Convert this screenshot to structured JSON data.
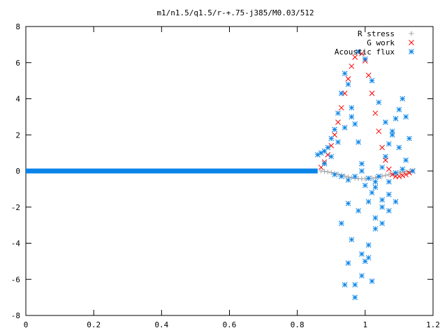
{
  "chart_data": {
    "type": "scatter",
    "title": "m1/n1.5/q1.5/r-+.75-j385/M0.03/512",
    "xlabel": "",
    "ylabel": "",
    "xlim": [
      0,
      1.2
    ],
    "ylim": [
      -8,
      8
    ],
    "xticks": [
      "0",
      "0.2",
      "0.4",
      "0.6",
      "0.8",
      "1",
      "1.2"
    ],
    "yticks": [
      "-8",
      "-6",
      "-4",
      "-2",
      "0",
      "2",
      "4",
      "6",
      "8"
    ],
    "grid": false,
    "legend_position": "top-right",
    "series": [
      {
        "name": "R stress",
        "marker": "plus",
        "color": "#a0a0a0",
        "x": [
          0.87,
          0.88,
          0.89,
          0.9,
          0.91,
          0.92,
          0.93,
          0.94,
          0.95,
          0.96,
          0.97,
          0.98,
          0.99,
          1.0,
          1.01,
          1.02,
          1.03,
          1.04,
          1.05,
          1.06,
          1.07,
          1.08,
          1.09,
          1.1,
          1.11,
          1.12,
          1.13,
          1.14
        ],
        "y": [
          0.0,
          -0.02,
          -0.05,
          -0.09,
          -0.13,
          -0.18,
          -0.23,
          -0.28,
          -0.33,
          -0.37,
          -0.4,
          -0.42,
          -0.43,
          -0.43,
          -0.42,
          -0.4,
          -0.37,
          -0.33,
          -0.28,
          -0.24,
          -0.2,
          -0.16,
          -0.12,
          -0.09,
          -0.06,
          -0.04,
          -0.02,
          0.0
        ]
      },
      {
        "name": "G work",
        "marker": "cross",
        "color": "#ff0000",
        "x": [
          0.87,
          0.88,
          0.89,
          0.9,
          0.91,
          0.92,
          0.93,
          0.94,
          0.95,
          0.96,
          0.97,
          0.98,
          0.99,
          1.0,
          1.01,
          1.02,
          1.03,
          1.04,
          1.05,
          1.06,
          1.07,
          1.08,
          1.09,
          1.1,
          1.11,
          1.12,
          1.13,
          1.14
        ],
        "y": [
          0.2,
          0.5,
          0.9,
          1.4,
          2.0,
          2.7,
          3.5,
          4.3,
          5.1,
          5.8,
          6.3,
          6.6,
          6.5,
          6.1,
          5.3,
          4.3,
          3.2,
          2.2,
          1.3,
          0.6,
          0.1,
          -0.2,
          -0.3,
          -0.3,
          -0.25,
          -0.2,
          -0.1,
          0.0
        ]
      },
      {
        "name": "Acoustic flux",
        "marker": "star",
        "color": "#0a84e8",
        "x": [
          0.86,
          0.87,
          0.88,
          0.89,
          0.9,
          0.91,
          0.92,
          0.93,
          0.94,
          0.95,
          0.96,
          0.97,
          0.98,
          0.99,
          1.0,
          1.01,
          1.02,
          1.03,
          1.04,
          1.05,
          1.06,
          1.07,
          1.08,
          1.09,
          1.1,
          1.11,
          1.12,
          1.13,
          1.14,
          0.88,
          0.9,
          0.92,
          0.94,
          0.96,
          0.98,
          1.0,
          1.02,
          1.04,
          1.06,
          1.08,
          1.1,
          1.12,
          0.93,
          0.95,
          0.97,
          0.99,
          1.01,
          1.03,
          1.05,
          1.07,
          0.94,
          0.96,
          0.98,
          1.0,
          1.02,
          0.95,
          0.97,
          0.99,
          1.01,
          1.03,
          1.05,
          1.07,
          1.09,
          0.91,
          0.93,
          0.95,
          0.97,
          0.99,
          1.01,
          1.03,
          1.05,
          1.07,
          1.09,
          1.11
        ],
        "y": [
          0.9,
          1.0,
          1.1,
          1.3,
          1.8,
          2.3,
          3.2,
          4.3,
          5.4,
          4.8,
          3.5,
          2.6,
          1.6,
          0.4,
          -0.8,
          -1.7,
          -1.2,
          -0.6,
          -0.3,
          0.2,
          0.8,
          1.5,
          2.2,
          2.9,
          3.4,
          4.0,
          3.0,
          1.8,
          0.0,
          0.4,
          0.8,
          1.6,
          2.4,
          3.0,
          6.6,
          6.2,
          5.0,
          3.8,
          2.7,
          2.0,
          1.3,
          0.6,
          -2.9,
          -5.1,
          -6.3,
          -5.8,
          -4.8,
          -3.2,
          -2.0,
          -1.3,
          -6.3,
          -3.8,
          -2.2,
          -5.0,
          -6.1,
          -1.8,
          -7.0,
          -4.6,
          -4.1,
          -2.6,
          -2.9,
          -2.2,
          -1.7,
          -0.2,
          -0.3,
          -0.5,
          -0.3,
          0.0,
          -0.4,
          -0.9,
          -1.6,
          -0.6,
          -0.1,
          0.1
        ]
      }
    ]
  }
}
